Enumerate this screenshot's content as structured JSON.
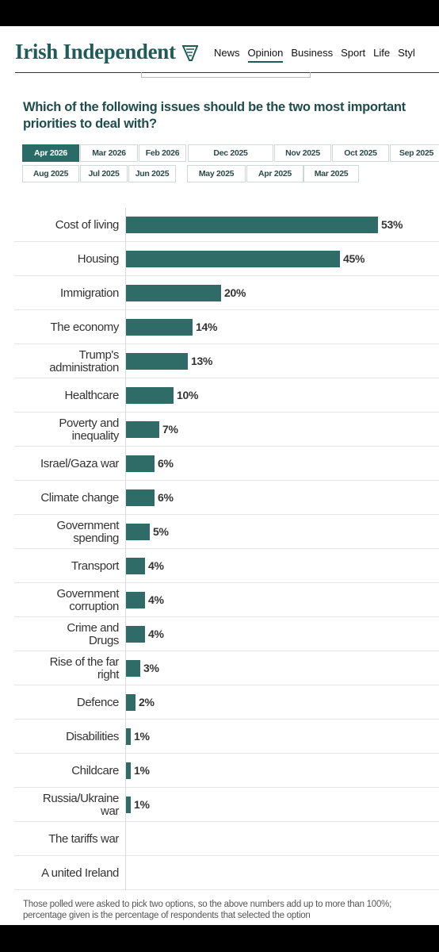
{
  "site": {
    "name": "Irish Independent"
  },
  "nav": {
    "items": [
      "News",
      "Opinion",
      "Business",
      "Sport",
      "Life",
      "Styl"
    ],
    "active": "Opinion"
  },
  "question": "Which of the following issues should be the two most important priorities to deal with?",
  "tabs": {
    "row1": [
      "Apr 2026",
      "Mar 2026",
      "Feb 2026",
      "Dec 2025",
      "Nov 2025",
      "Oct 2025",
      "Sep 2025"
    ],
    "row2": [
      "Aug 2025",
      "Jul 2025",
      "Jun 2025",
      "May 2025",
      "Apr 2025",
      "Mar 2025"
    ],
    "selected": "Apr 2026"
  },
  "colors": {
    "brand": "#1f5b58",
    "bar": "#2f6c68",
    "active_tab": "#2a6b67"
  },
  "chart_data": {
    "type": "bar",
    "orientation": "horizontal",
    "categories": [
      "Cost of living",
      "Housing",
      "Immigration",
      "The economy",
      "Trump's administration",
      "Healthcare",
      "Poverty and inequality",
      "Israel/Gaza war",
      "Climate change",
      "Government spending",
      "Transport",
      "Government corruption",
      "Crime and Drugs",
      "Rise of the far right",
      "Defence",
      "Disabilities",
      "Childcare",
      "Russia/Ukraine war",
      "The tariffs war",
      "A united Ireland"
    ],
    "values": [
      53,
      45,
      20,
      14,
      13,
      10,
      7,
      6,
      6,
      5,
      4,
      4,
      4,
      3,
      2,
      1,
      1,
      1,
      null,
      null
    ],
    "labels": [
      "53%",
      "45%",
      "20%",
      "14%",
      "13%",
      "10%",
      "7%",
      "6%",
      "6%",
      "5%",
      "4%",
      "4%",
      "4%",
      "3%",
      "2%",
      "1%",
      "1%",
      "1%",
      "",
      ""
    ],
    "unit": "%",
    "xlim": [
      0,
      66
    ]
  },
  "footnote": "Those polled were asked to pick two options, so the above numbers add up to more than 100%; percentage given is the percentage of respondents that selected the option"
}
